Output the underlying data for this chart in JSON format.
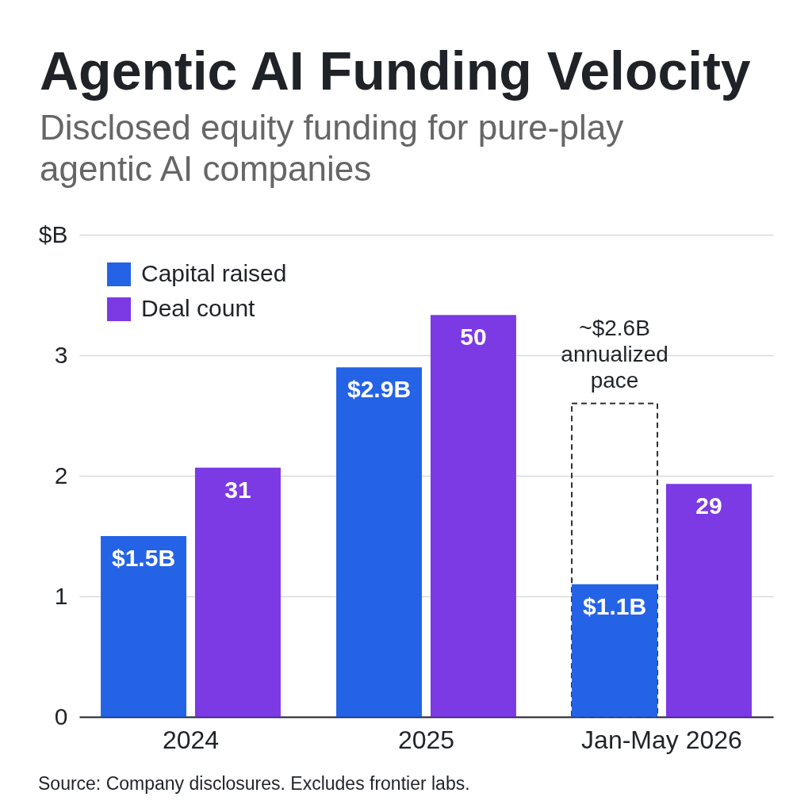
{
  "chart_data": {
    "type": "bar",
    "title": "Agentic AI Funding Velocity",
    "subtitle": "Disclosed equity funding for pure-play agentic AI companies",
    "categories": [
      "2024",
      "2025",
      "Jan-May 2026"
    ],
    "series": [
      {
        "type": "bar",
        "color": "#2b2f33",
        "values": [
          null,
          null,
          2.6
        ],
        "value_labels": [
          null,
          null,
          "~$2.6B annualized pace"
        ],
        "line_style": "dashed"
      },
      {
        "name": "Capital raised",
        "color": "#2563e6",
        "values": [
          1.5,
          2.9,
          1.1
        ],
        "value_labels": [
          "$1.5B",
          "$2.9B",
          "$1.1B"
        ]
      },
      {
        "name": "Deal count",
        "color": "#7b3ae4",
        "values": [
          31,
          50,
          29
        ],
        "value_labels": [
          "31",
          "50",
          "29"
        ],
        "axis": "y2"
      }
    ],
    "ylim": [
      0,
      4
    ],
    "yticks": [
      0,
      1,
      2,
      3,
      {
        "value": 4,
        "label": "$B"
      }
    ],
    "y2lim": [
      0,
      60
    ],
    "grid": "y",
    "legend": "top left",
    "annotations": [
      "Source: Company disclosures. Excludes frontier labs."
    ]
  }
}
